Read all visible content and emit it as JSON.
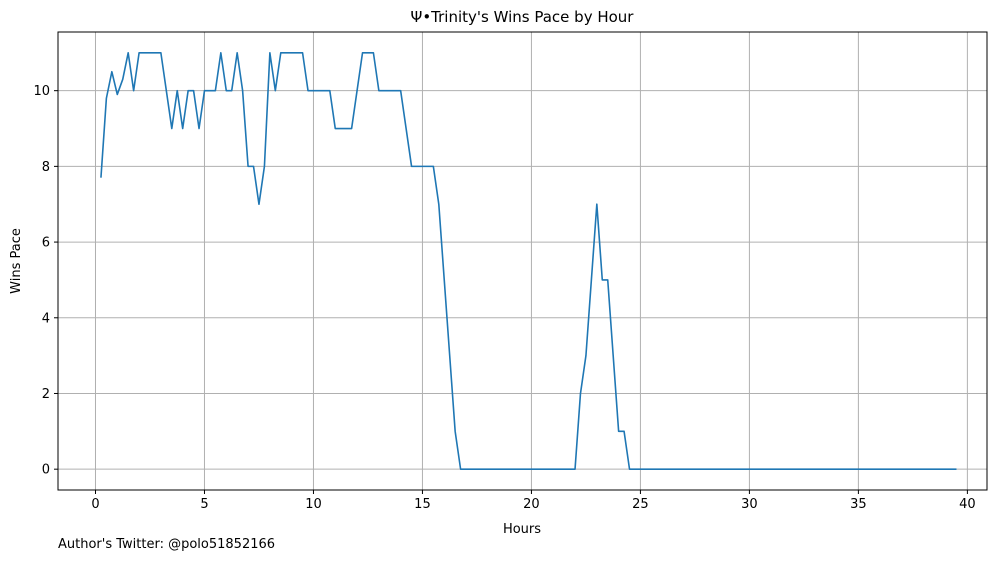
{
  "chart_data": {
    "type": "line",
    "title": "Ψ•Trinity's Wins Pace by Hour",
    "xlabel": "Hours",
    "ylabel": "Wins Pace",
    "xlim": [
      -1.72,
      40.9
    ],
    "ylim": [
      -0.55,
      11.55
    ],
    "xticks": [
      0,
      5,
      10,
      15,
      20,
      25,
      30,
      35,
      40
    ],
    "yticks": [
      0,
      2,
      4,
      6,
      8,
      10
    ],
    "grid": true,
    "color": "#1f77b4",
    "series": [
      {
        "x": [
          0.25,
          0.5,
          0.75,
          1.0,
          1.25,
          1.5,
          1.75,
          2.0,
          2.25,
          2.5,
          2.75,
          3.0,
          3.25,
          3.5,
          3.75,
          4.0,
          4.25,
          4.5,
          4.75,
          5.0,
          5.25,
          5.5,
          5.75,
          6.0,
          6.25,
          6.5,
          6.75,
          7.0,
          7.25,
          7.5,
          7.75,
          8.0,
          8.25,
          8.5,
          8.75,
          9.0,
          9.25,
          9.5,
          9.75,
          10.0,
          10.25,
          10.5,
          10.75,
          11.0,
          11.25,
          11.5,
          11.75,
          12.0,
          12.25,
          12.5,
          12.75,
          13.0,
          13.25,
          13.5,
          13.75,
          14.0,
          14.25,
          14.5,
          14.75,
          15.0,
          15.25,
          15.5,
          15.75,
          16.0,
          16.25,
          16.5,
          16.75,
          17.0,
          17.5,
          18.0,
          18.5,
          19.0,
          19.5,
          20.0,
          20.5,
          21.0,
          21.5,
          22.0,
          22.25,
          22.5,
          22.75,
          23.0,
          23.25,
          23.5,
          23.75,
          24.0,
          24.25,
          24.5,
          25.0,
          26.0,
          27.0,
          28.0,
          29.0,
          30.0,
          31.0,
          32.0,
          33.0,
          34.0,
          35.0,
          36.0,
          37.0,
          38.0,
          39.0,
          39.5
        ],
        "y": [
          7.7,
          9.8,
          10.5,
          9.9,
          10.3,
          11,
          10,
          11,
          11,
          11,
          11,
          11,
          10,
          9,
          10,
          9,
          10,
          10,
          9,
          10,
          10,
          10,
          11,
          10,
          10,
          11,
          10,
          8,
          8,
          7,
          8,
          11,
          10,
          11,
          11,
          11,
          11,
          11,
          10,
          10,
          10,
          10,
          10,
          9,
          9,
          9,
          9,
          10,
          11,
          11,
          11,
          10,
          10,
          10,
          10,
          10,
          9,
          8,
          8,
          8,
          8,
          8,
          7,
          5,
          3,
          1,
          0,
          0,
          0,
          0,
          0,
          0,
          0,
          0,
          0,
          0,
          0,
          0,
          2,
          3,
          5,
          7,
          5,
          5,
          3,
          1,
          1,
          0,
          0,
          0,
          0,
          0,
          0,
          0,
          0,
          0,
          0,
          0,
          0,
          0,
          0,
          0,
          0,
          0
        ]
      }
    ]
  },
  "footnote": "Author's Twitter: @polo51852166"
}
